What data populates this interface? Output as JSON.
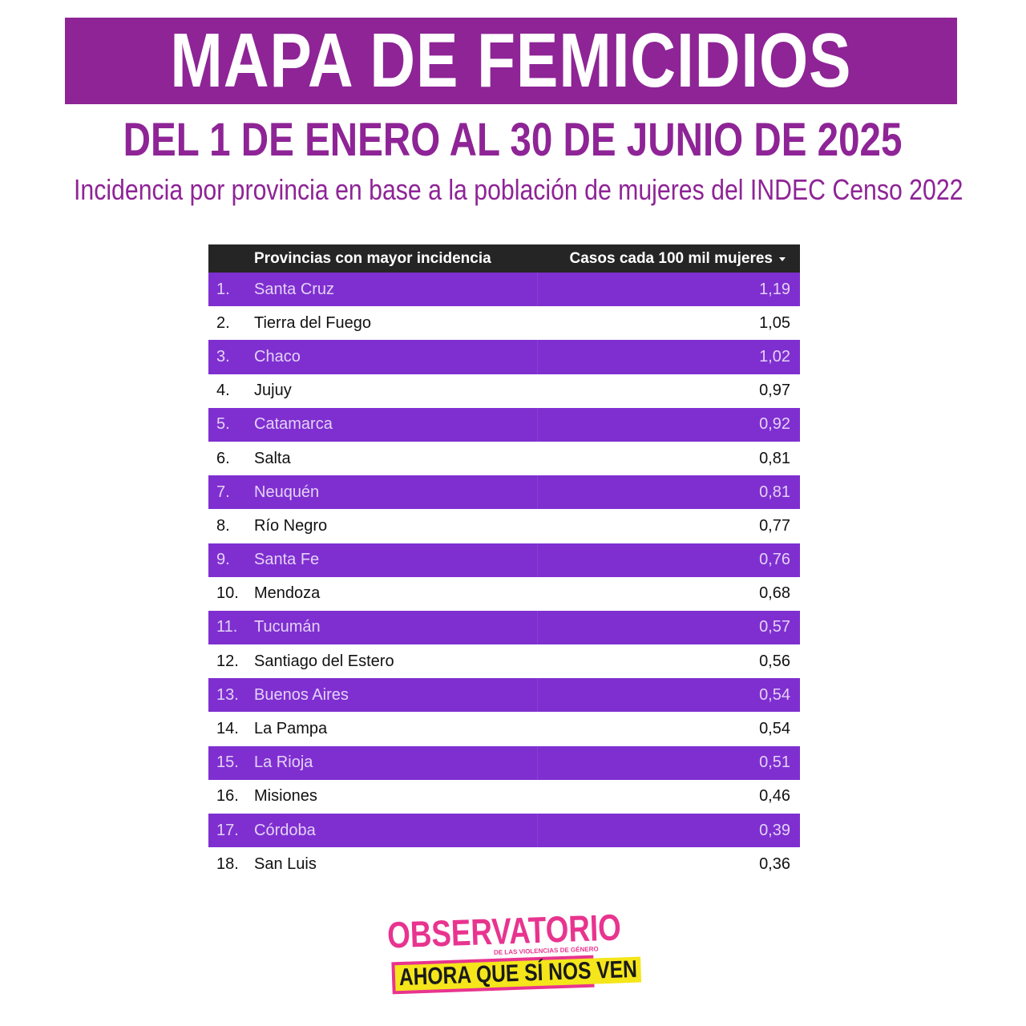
{
  "header": {
    "title": "MAPA DE FEMICIDIOS",
    "subtitle": "DEL 1 DE ENERO AL 30 DE JUNIO DE 2025",
    "note": "Incidencia por provincia en base a la población de mujeres del INDEC Censo 2022"
  },
  "table": {
    "columns": [
      "Provincias con mayor incidencia",
      "Casos cada 100 mil mujeres"
    ],
    "sort_icon": "sort-desc-icon",
    "rows": [
      {
        "rank": "1.",
        "province": "Santa Cruz",
        "value": "1,19"
      },
      {
        "rank": "2.",
        "province": "Tierra del Fuego",
        "value": "1,05"
      },
      {
        "rank": "3.",
        "province": "Chaco",
        "value": "1,02"
      },
      {
        "rank": "4.",
        "province": "Jujuy",
        "value": "0,97"
      },
      {
        "rank": "5.",
        "province": "Catamarca",
        "value": "0,92"
      },
      {
        "rank": "6.",
        "province": "Salta",
        "value": "0,81"
      },
      {
        "rank": "7.",
        "province": "Neuquén",
        "value": "0,81"
      },
      {
        "rank": "8.",
        "province": "Río Negro",
        "value": "0,77"
      },
      {
        "rank": "9.",
        "province": "Santa Fe",
        "value": "0,76"
      },
      {
        "rank": "10.",
        "province": "Mendoza",
        "value": "0,68"
      },
      {
        "rank": "11.",
        "province": "Tucumán",
        "value": "0,57"
      },
      {
        "rank": "12.",
        "province": "Santiago del Estero",
        "value": "0,56"
      },
      {
        "rank": "13.",
        "province": "Buenos Aires",
        "value": "0,54"
      },
      {
        "rank": "14.",
        "province": "La Pampa",
        "value": "0,54"
      },
      {
        "rank": "15.",
        "province": "La Rioja",
        "value": "0,51"
      },
      {
        "rank": "16.",
        "province": "Misiones",
        "value": "0,46"
      },
      {
        "rank": "17.",
        "province": "Córdoba",
        "value": "0,39"
      },
      {
        "rank": "18.",
        "province": "San Luis",
        "value": "0,36"
      }
    ]
  },
  "logo": {
    "top": "OBSERVATORIO",
    "small": "DE LAS VIOLENCIAS DE GÉNERO",
    "bottom": "AHORA QUE SÍ NOS VEN"
  },
  "colors": {
    "brand_purple": "#8e2496",
    "row_purple": "#7f2fd0",
    "header_dark": "#252525",
    "logo_pink": "#e8348f",
    "logo_yellow": "#f4e61a"
  }
}
